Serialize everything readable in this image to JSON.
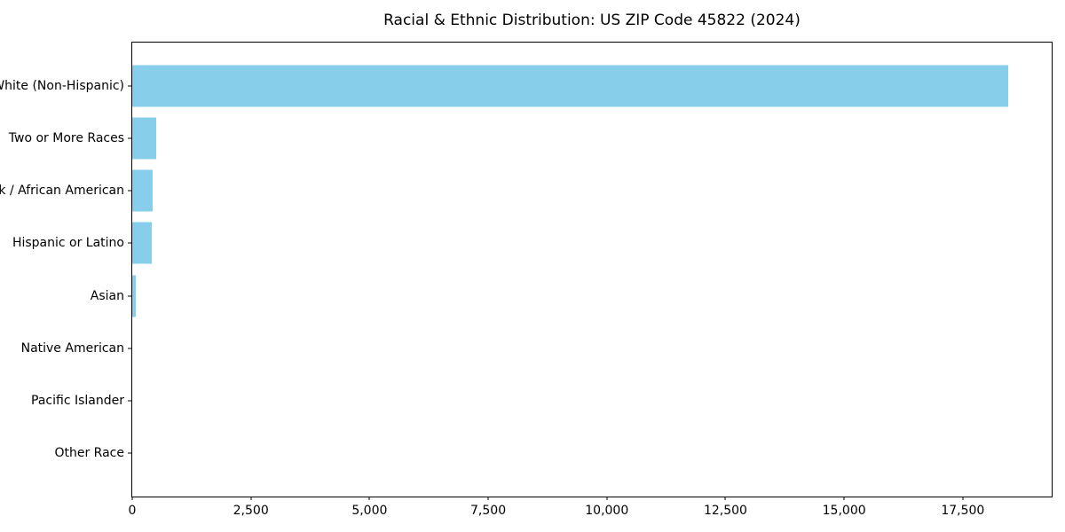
{
  "chart_data": {
    "type": "bar",
    "orientation": "horizontal",
    "title": "Racial & Ethnic Distribution: US ZIP Code 45822 (2024)",
    "categories": [
      "White (Non-Hispanic)",
      "Two or More Races",
      "Black / African American",
      "Hispanic or Latino",
      "Asian",
      "Native American",
      "Pacific Islander",
      "Other Race"
    ],
    "values": [
      18450,
      505,
      430,
      410,
      75,
      0,
      0,
      0
    ],
    "xlabel": "",
    "ylabel": "",
    "xlim": [
      0,
      19373
    ],
    "x_ticks": [
      0,
      2500,
      5000,
      7500,
      10000,
      12500,
      15000,
      17500
    ],
    "x_tick_labels": [
      "0",
      "2,500",
      "5,000",
      "7,500",
      "10,000",
      "12,500",
      "15,000",
      "17,500"
    ],
    "bar_color": "#87CEEB",
    "text_color": "#000000",
    "grid": false,
    "legend": false
  }
}
